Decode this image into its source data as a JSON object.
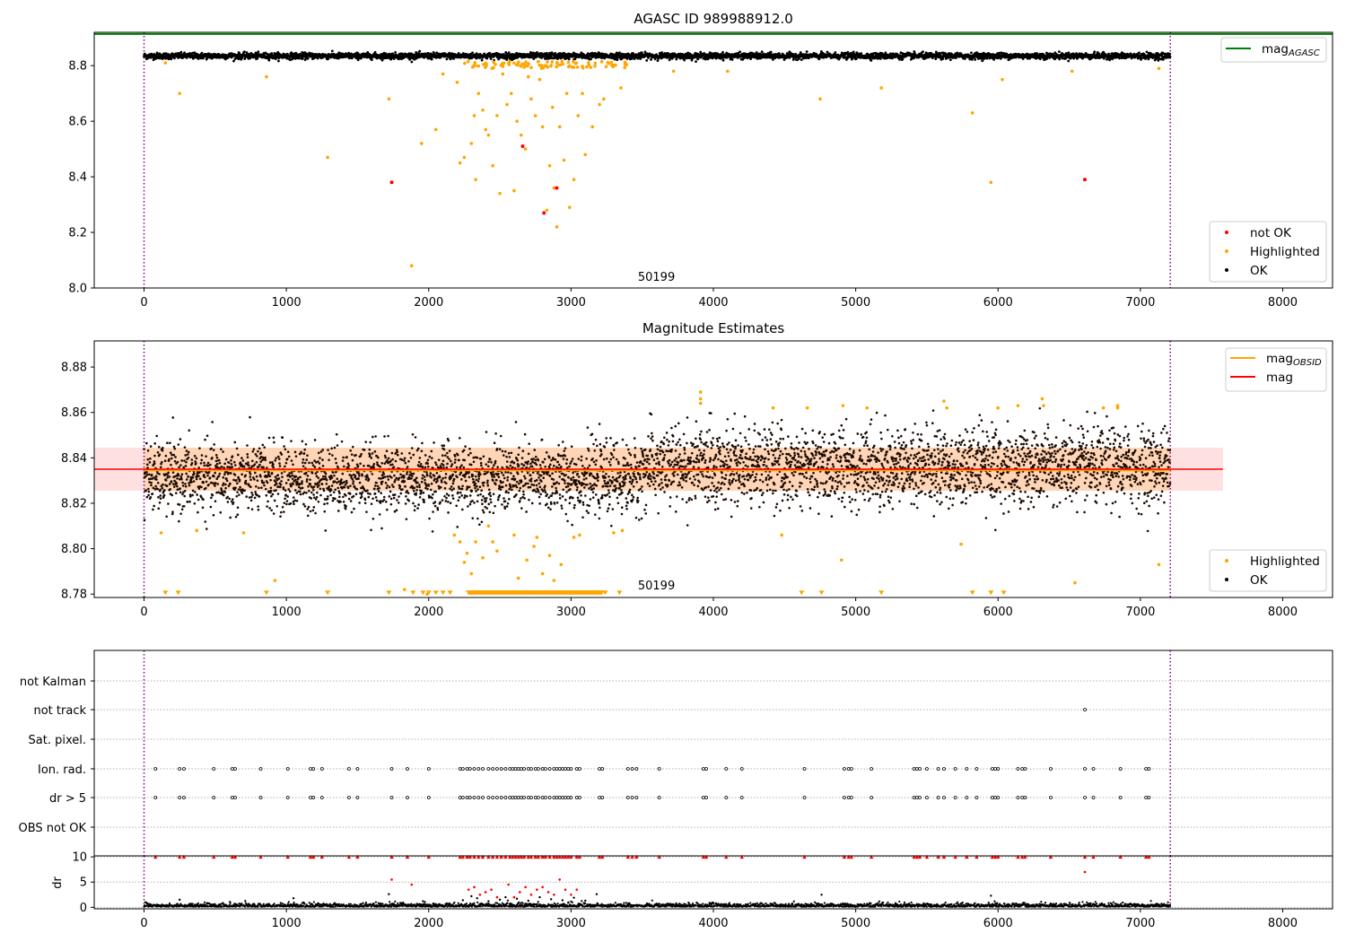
{
  "chart_data": [
    {
      "id": "agasc",
      "type": "scatter",
      "title": "AGASC ID 989988912.0",
      "xlim": [
        -350,
        8350
      ],
      "ylim": [
        8.0,
        8.92
      ],
      "xticks": [
        0,
        1000,
        2000,
        3000,
        4000,
        5000,
        6000,
        7000,
        8000
      ],
      "xtick_labels": [
        "0",
        "1000",
        "2000",
        "3000",
        "4000",
        "5000",
        "6000",
        "7000",
        "8000"
      ],
      "yticks": [
        8.0,
        8.2,
        8.4,
        8.6,
        8.8
      ],
      "ytick_labels": [
        "8.0",
        "8.2",
        "8.4",
        "8.6",
        "8.8"
      ],
      "obsid_boundaries": [
        0,
        7210
      ],
      "obsid_label": "50199",
      "obsid_label_x": 3600,
      "reference_line": {
        "name": "mag",
        "subscript": "AGASC",
        "value": 8.914,
        "color": "#008000"
      },
      "legend_top": [
        {
          "name": "mag",
          "subscript": "AGASC",
          "kind": "line",
          "color": "#008000"
        }
      ],
      "legend_bottom": [
        {
          "name": "not OK",
          "kind": "dot",
          "color": "#ff0000"
        },
        {
          "name": "Highlighted",
          "kind": "dot",
          "color": "#ffa500"
        },
        {
          "name": "OK",
          "kind": "dot",
          "color": "#000000"
        }
      ],
      "ok_band": {
        "x_range": [
          0,
          7210
        ],
        "center": 8.835,
        "spread": 0.012
      },
      "highlighted_points": [
        [
          150,
          8.81
        ],
        [
          250,
          8.7
        ],
        [
          860,
          8.76
        ],
        [
          1290,
          8.47
        ],
        [
          1720,
          8.68
        ],
        [
          1880,
          8.08
        ],
        [
          1950,
          8.52
        ],
        [
          2050,
          8.57
        ],
        [
          2100,
          8.77
        ],
        [
          2200,
          8.74
        ],
        [
          2220,
          8.45
        ],
        [
          2250,
          8.47
        ],
        [
          2300,
          8.52
        ],
        [
          2320,
          8.62
        ],
        [
          2330,
          8.39
        ],
        [
          2350,
          8.7
        ],
        [
          2380,
          8.64
        ],
        [
          2400,
          8.57
        ],
        [
          2420,
          8.55
        ],
        [
          2450,
          8.44
        ],
        [
          2480,
          8.62
        ],
        [
          2500,
          8.34
        ],
        [
          2520,
          8.77
        ],
        [
          2550,
          8.66
        ],
        [
          2580,
          8.7
        ],
        [
          2600,
          8.35
        ],
        [
          2620,
          8.6
        ],
        [
          2650,
          8.55
        ],
        [
          2680,
          8.5
        ],
        [
          2700,
          8.76
        ],
        [
          2720,
          8.68
        ],
        [
          2750,
          8.62
        ],
        [
          2780,
          8.75
        ],
        [
          2800,
          8.58
        ],
        [
          2830,
          8.28
        ],
        [
          2850,
          8.44
        ],
        [
          2870,
          8.65
        ],
        [
          2880,
          8.36
        ],
        [
          2900,
          8.22
        ],
        [
          2920,
          8.58
        ],
        [
          2950,
          8.46
        ],
        [
          2970,
          8.7
        ],
        [
          2990,
          8.29
        ],
        [
          3020,
          8.39
        ],
        [
          3050,
          8.62
        ],
        [
          3080,
          8.7
        ],
        [
          3100,
          8.48
        ],
        [
          3150,
          8.58
        ],
        [
          3200,
          8.66
        ],
        [
          3230,
          8.68
        ],
        [
          3300,
          8.8
        ],
        [
          3350,
          8.72
        ],
        [
          3720,
          8.78
        ],
        [
          4100,
          8.78
        ],
        [
          4750,
          8.68
        ],
        [
          5180,
          8.72
        ],
        [
          5950,
          8.38
        ],
        [
          5820,
          8.63
        ],
        [
          6030,
          8.75
        ],
        [
          6520,
          8.78
        ],
        [
          7130,
          8.79
        ]
      ],
      "not_ok_points": [
        [
          1740,
          8.38
        ],
        [
          2660,
          8.51
        ],
        [
          2810,
          8.27
        ],
        [
          2900,
          8.36
        ],
        [
          6610,
          8.39
        ]
      ]
    },
    {
      "id": "mag_estimates",
      "type": "scatter",
      "title": "Magnitude Estimates",
      "xlim": [
        -350,
        8350
      ],
      "ylim": [
        8.7785,
        8.8915
      ],
      "xticks": [
        0,
        1000,
        2000,
        3000,
        4000,
        5000,
        6000,
        7000,
        8000
      ],
      "xtick_labels": [
        "0",
        "1000",
        "2000",
        "3000",
        "4000",
        "5000",
        "6000",
        "7000",
        "8000"
      ],
      "yticks": [
        8.78,
        8.8,
        8.82,
        8.84,
        8.86,
        8.88
      ],
      "ytick_labels": [
        "8.78",
        "8.80",
        "8.82",
        "8.84",
        "8.86",
        "8.88"
      ],
      "obsid_boundaries": [
        0,
        7210
      ],
      "obsid_label": "50199",
      "obsid_label_x": 3600,
      "mag_line": {
        "name": "mag",
        "value": 8.835,
        "color": "#ff0000",
        "band": [
          8.8255,
          8.8445
        ],
        "x_range": [
          -350,
          7580
        ]
      },
      "obsid_line": {
        "name": "mag",
        "subscript": "OBSID",
        "value": 8.8345,
        "color": "#ffa500",
        "band": [
          8.8255,
          8.8445
        ],
        "x_range": [
          0,
          7210
        ]
      },
      "legend_top": [
        {
          "name": "mag",
          "subscript": "OBSID",
          "kind": "line",
          "color": "#ffa500"
        },
        {
          "name": "mag",
          "kind": "line",
          "color": "#ff0000"
        }
      ],
      "legend_bottom": [
        {
          "name": "Highlighted",
          "kind": "dot",
          "color": "#ffa500"
        },
        {
          "name": "OK",
          "kind": "dot",
          "color": "#000000"
        }
      ],
      "ok_band": {
        "segments": [
          {
            "x_range": [
              0,
              3500
            ],
            "center": 8.831,
            "spread": 0.0075
          },
          {
            "x_range": [
              3500,
              7210
            ],
            "center": 8.836,
            "spread": 0.0085
          }
        ]
      },
      "highlighted_points": [
        [
          120,
          8.807
        ],
        [
          370,
          8.808
        ],
        [
          700,
          8.807
        ],
        [
          920,
          8.786
        ],
        [
          1830,
          8.782
        ],
        [
          1990,
          8.78
        ],
        [
          2180,
          8.806
        ],
        [
          2220,
          8.803
        ],
        [
          2250,
          8.794
        ],
        [
          2270,
          8.798
        ],
        [
          2300,
          8.789
        ],
        [
          2330,
          8.803
        ],
        [
          2380,
          8.796
        ],
        [
          2420,
          8.81
        ],
        [
          2450,
          8.803
        ],
        [
          2480,
          8.799
        ],
        [
          2520,
          8.781
        ],
        [
          2600,
          8.806
        ],
        [
          2630,
          8.787
        ],
        [
          2690,
          8.795
        ],
        [
          2740,
          8.801
        ],
        [
          2760,
          8.805
        ],
        [
          2800,
          8.789
        ],
        [
          2850,
          8.797
        ],
        [
          2880,
          8.786
        ],
        [
          2930,
          8.793
        ],
        [
          3020,
          8.805
        ],
        [
          3060,
          8.806
        ],
        [
          3300,
          8.807
        ],
        [
          3360,
          8.808
        ],
        [
          3910,
          8.869
        ],
        [
          3910,
          8.866
        ],
        [
          3910,
          8.864
        ],
        [
          4420,
          8.862
        ],
        [
          4480,
          8.806
        ],
        [
          4660,
          8.862
        ],
        [
          4900,
          8.795
        ],
        [
          4910,
          8.863
        ],
        [
          5080,
          8.862
        ],
        [
          5620,
          8.865
        ],
        [
          5640,
          8.862
        ],
        [
          5740,
          8.802
        ],
        [
          6000,
          8.862
        ],
        [
          6140,
          8.863
        ],
        [
          6310,
          8.866
        ],
        [
          6320,
          8.863
        ],
        [
          6540,
          8.785
        ],
        [
          6740,
          8.862
        ],
        [
          6840,
          8.863
        ],
        [
          6840,
          8.862
        ],
        [
          7130,
          8.793
        ]
      ],
      "clipped_markers": [
        150,
        240,
        860,
        1290,
        1720,
        1890,
        1960,
        2000,
        2050,
        2100,
        2150,
        2300,
        2340,
        2400,
        2440,
        2480,
        2520,
        2580,
        2640,
        2700,
        2760,
        2820,
        2880,
        2940,
        3000,
        3060,
        3120,
        3180,
        3240,
        3340,
        4620,
        4760,
        5180,
        5820,
        5950,
        6040
      ]
    },
    {
      "id": "flags",
      "type": "scatter",
      "xlim": [
        -350,
        8350
      ],
      "categories": [
        "not Kalman",
        "not track",
        "Sat. pixel.",
        "Ion. rad.",
        "dr > 5",
        "OBS not OK"
      ],
      "obsid_boundaries": [
        0,
        7210
      ],
      "flag_points": {
        "not track": [
          6610
        ],
        "Ion. rad.": [
          80,
          250,
          280,
          490,
          620,
          640,
          820,
          1010,
          1170,
          1190,
          1250,
          1440,
          1500,
          1740,
          1850,
          2000,
          2220,
          2240,
          2270,
          2290,
          2320,
          2350,
          2380,
          2420,
          2450,
          2480,
          2510,
          2540,
          2570,
          2590,
          2610,
          2630,
          2650,
          2670,
          2700,
          2720,
          2750,
          2770,
          2800,
          2820,
          2850,
          2880,
          2900,
          2920,
          2940,
          2960,
          2980,
          3000,
          3040,
          3060,
          3200,
          3220,
          3400,
          3430,
          3460,
          3620,
          3930,
          3950,
          4090,
          4200,
          4640,
          4920,
          4950,
          4970,
          5110,
          5410,
          5430,
          5450,
          5500,
          5580,
          5620,
          5700,
          5780,
          5850,
          5960,
          5980,
          6000,
          6140,
          6170,
          6190,
          6370,
          6610,
          6670,
          6860,
          7040,
          7060
        ],
        "dr > 5": [
          80,
          250,
          280,
          490,
          620,
          640,
          820,
          1010,
          1170,
          1190,
          1250,
          1440,
          1500,
          1740,
          1850,
          2000,
          2220,
          2240,
          2270,
          2290,
          2320,
          2350,
          2380,
          2420,
          2450,
          2480,
          2510,
          2540,
          2570,
          2590,
          2610,
          2630,
          2650,
          2670,
          2700,
          2720,
          2750,
          2770,
          2800,
          2820,
          2850,
          2880,
          2900,
          2920,
          2940,
          2960,
          2980,
          3000,
          3040,
          3060,
          3200,
          3220,
          3400,
          3430,
          3460,
          3620,
          3930,
          3950,
          4090,
          4200,
          4640,
          4920,
          4950,
          4970,
          5110,
          5410,
          5430,
          5450,
          5500,
          5580,
          5620,
          5700,
          5780,
          5850,
          5960,
          5980,
          6000,
          6140,
          6170,
          6190,
          6370,
          6610,
          6670,
          6860,
          7040,
          7060
        ]
      }
    },
    {
      "id": "dr",
      "type": "scatter",
      "ylabel": "dr",
      "xlim": [
        -350,
        8350
      ],
      "ylim": [
        -0.3,
        10.2
      ],
      "xticks": [
        0,
        1000,
        2000,
        3000,
        4000,
        5000,
        6000,
        7000,
        8000
      ],
      "xtick_labels": [
        "0",
        "1000",
        "2000",
        "3000",
        "4000",
        "5000",
        "6000",
        "7000",
        "8000"
      ],
      "yticks": [
        0,
        5,
        10
      ],
      "ytick_labels": [
        "0",
        "5",
        "10"
      ],
      "obsid_boundaries": [
        0,
        7210
      ],
      "clip_value": 10,
      "clipped_x": [
        80,
        250,
        280,
        490,
        620,
        640,
        820,
        1010,
        1170,
        1190,
        1250,
        1440,
        1500,
        1740,
        1850,
        2000,
        2220,
        2240,
        2270,
        2290,
        2320,
        2350,
        2380,
        2420,
        2450,
        2480,
        2510,
        2540,
        2570,
        2590,
        2610,
        2630,
        2650,
        2670,
        2700,
        2720,
        2750,
        2770,
        2800,
        2820,
        2850,
        2880,
        2900,
        2920,
        2940,
        2960,
        2980,
        3000,
        3040,
        3060,
        3200,
        3220,
        3400,
        3430,
        3460,
        3620,
        3930,
        3950,
        4090,
        4200,
        4640,
        4920,
        4950,
        4970,
        5110,
        5410,
        5430,
        5450,
        5500,
        5580,
        5620,
        5700,
        5780,
        5850,
        5960,
        5980,
        6000,
        6140,
        6170,
        6190,
        6370,
        6610,
        6670,
        6860,
        7040,
        7060
      ],
      "red_points": [
        [
          1740,
          5.5
        ],
        [
          1880,
          4.5
        ],
        [
          2280,
          3.5
        ],
        [
          2320,
          4.0
        ],
        [
          2360,
          2.5
        ],
        [
          2400,
          3.0
        ],
        [
          2440,
          3.5
        ],
        [
          2480,
          2.0
        ],
        [
          2560,
          4.5
        ],
        [
          2600,
          2.0
        ],
        [
          2640,
          3.0
        ],
        [
          2680,
          4.0
        ],
        [
          2720,
          2.5
        ],
        [
          2760,
          3.5
        ],
        [
          2800,
          4.0
        ],
        [
          2840,
          3.0
        ],
        [
          2880,
          2.5
        ],
        [
          2920,
          5.5
        ],
        [
          2960,
          3.5
        ],
        [
          3000,
          2.5
        ],
        [
          3040,
          3.5
        ],
        [
          6610,
          7.0
        ]
      ],
      "black_points": [
        [
          1720,
          2.6
        ],
        [
          1960,
          1.2
        ],
        [
          2240,
          1.4
        ],
        [
          2300,
          2.2
        ],
        [
          2340,
          1.8
        ],
        [
          2420,
          1.2
        ],
        [
          2500,
          1.5
        ],
        [
          2540,
          2.0
        ],
        [
          2620,
          1.7
        ],
        [
          2700,
          1.3
        ],
        [
          2780,
          2.0
        ],
        [
          2860,
          1.6
        ],
        [
          2940,
          1.4
        ],
        [
          3020,
          1.9
        ],
        [
          3100,
          1.3
        ],
        [
          3180,
          2.6
        ],
        [
          4760,
          2.5
        ],
        [
          5950,
          2.3
        ],
        [
          250,
          1.5
        ],
        [
          1050,
          1.8
        ]
      ]
    }
  ]
}
